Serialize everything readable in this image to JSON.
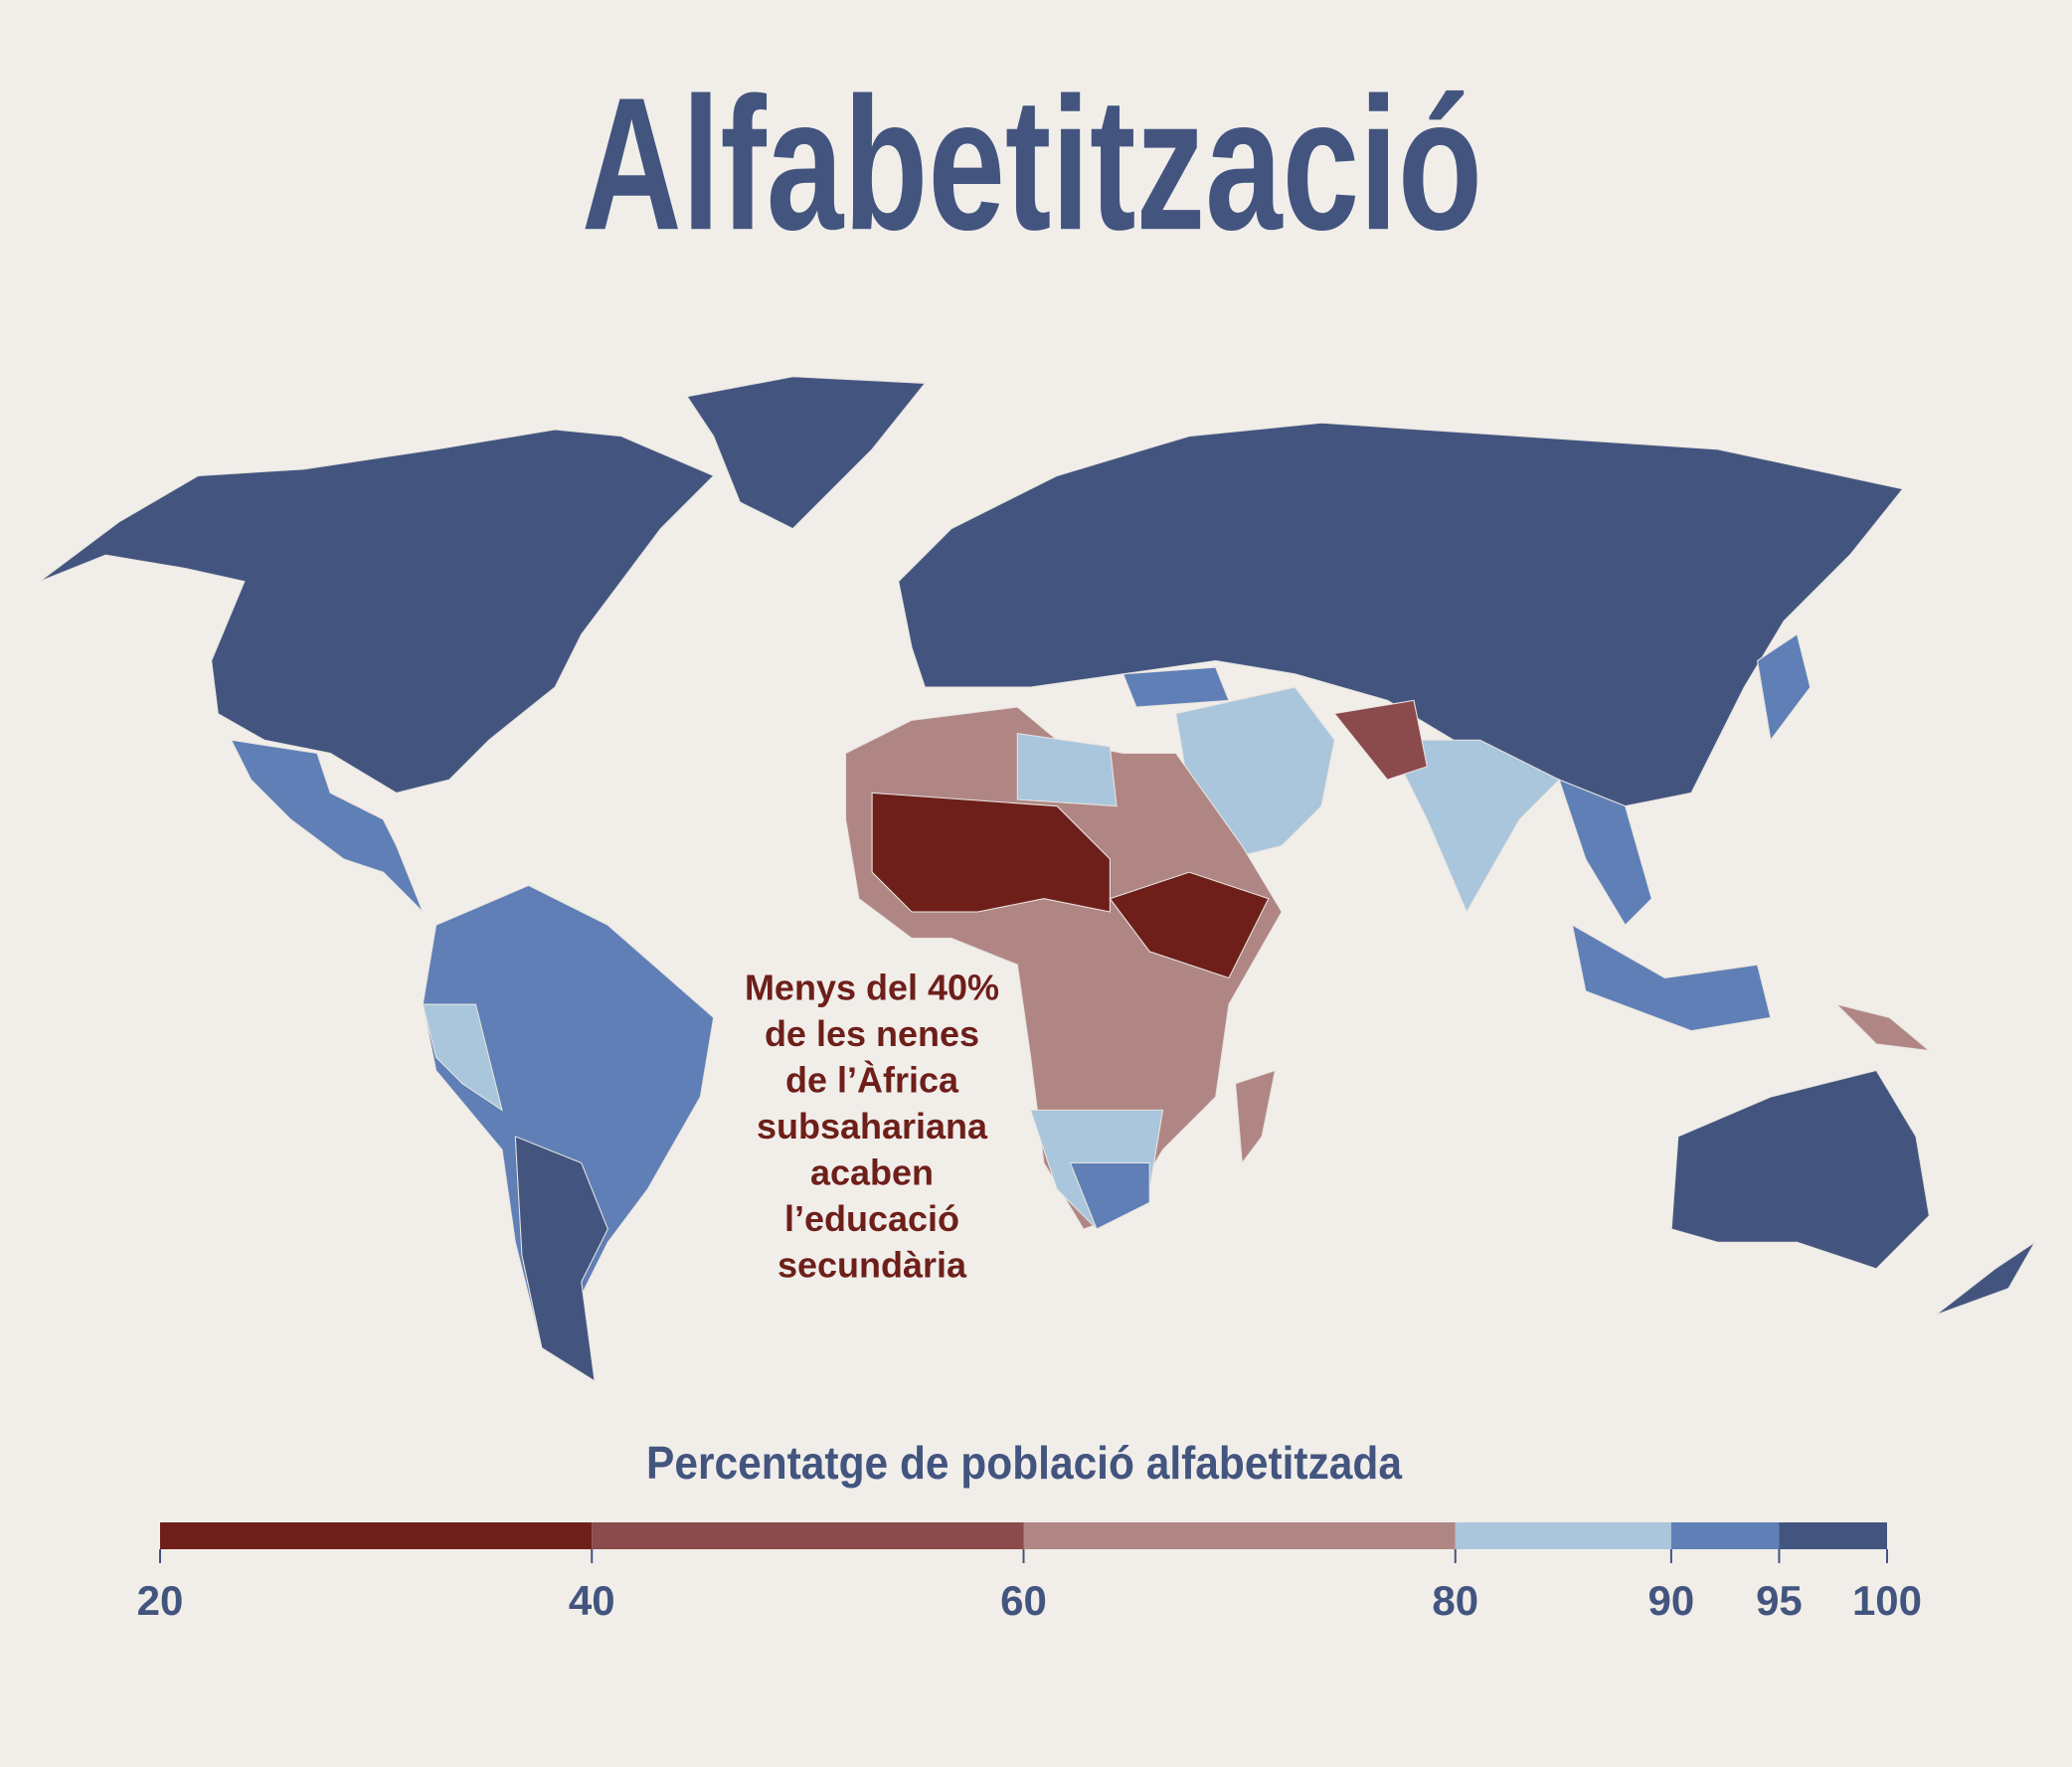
{
  "chart_data": {
    "type": "choropleth",
    "title": "Alfabetització",
    "annotation": [
      "Menys del 40%",
      "de les nenes",
      "de l’Àfrica",
      "subsahariana",
      "acaben",
      "l’educació",
      "secundària"
    ],
    "legend_title": "Percentatge de població alfabetitzada",
    "bins": [
      20,
      40,
      60,
      80,
      90,
      95,
      100
    ],
    "colors": [
      "#6e1f1a",
      "#8b4a4b",
      "#b08684",
      "#a9c6dc",
      "#5f7fb6",
      "#43557f"
    ],
    "xlim": [
      20,
      100
    ],
    "xticks": [
      20,
      40,
      60,
      80,
      90,
      95,
      100
    ]
  }
}
